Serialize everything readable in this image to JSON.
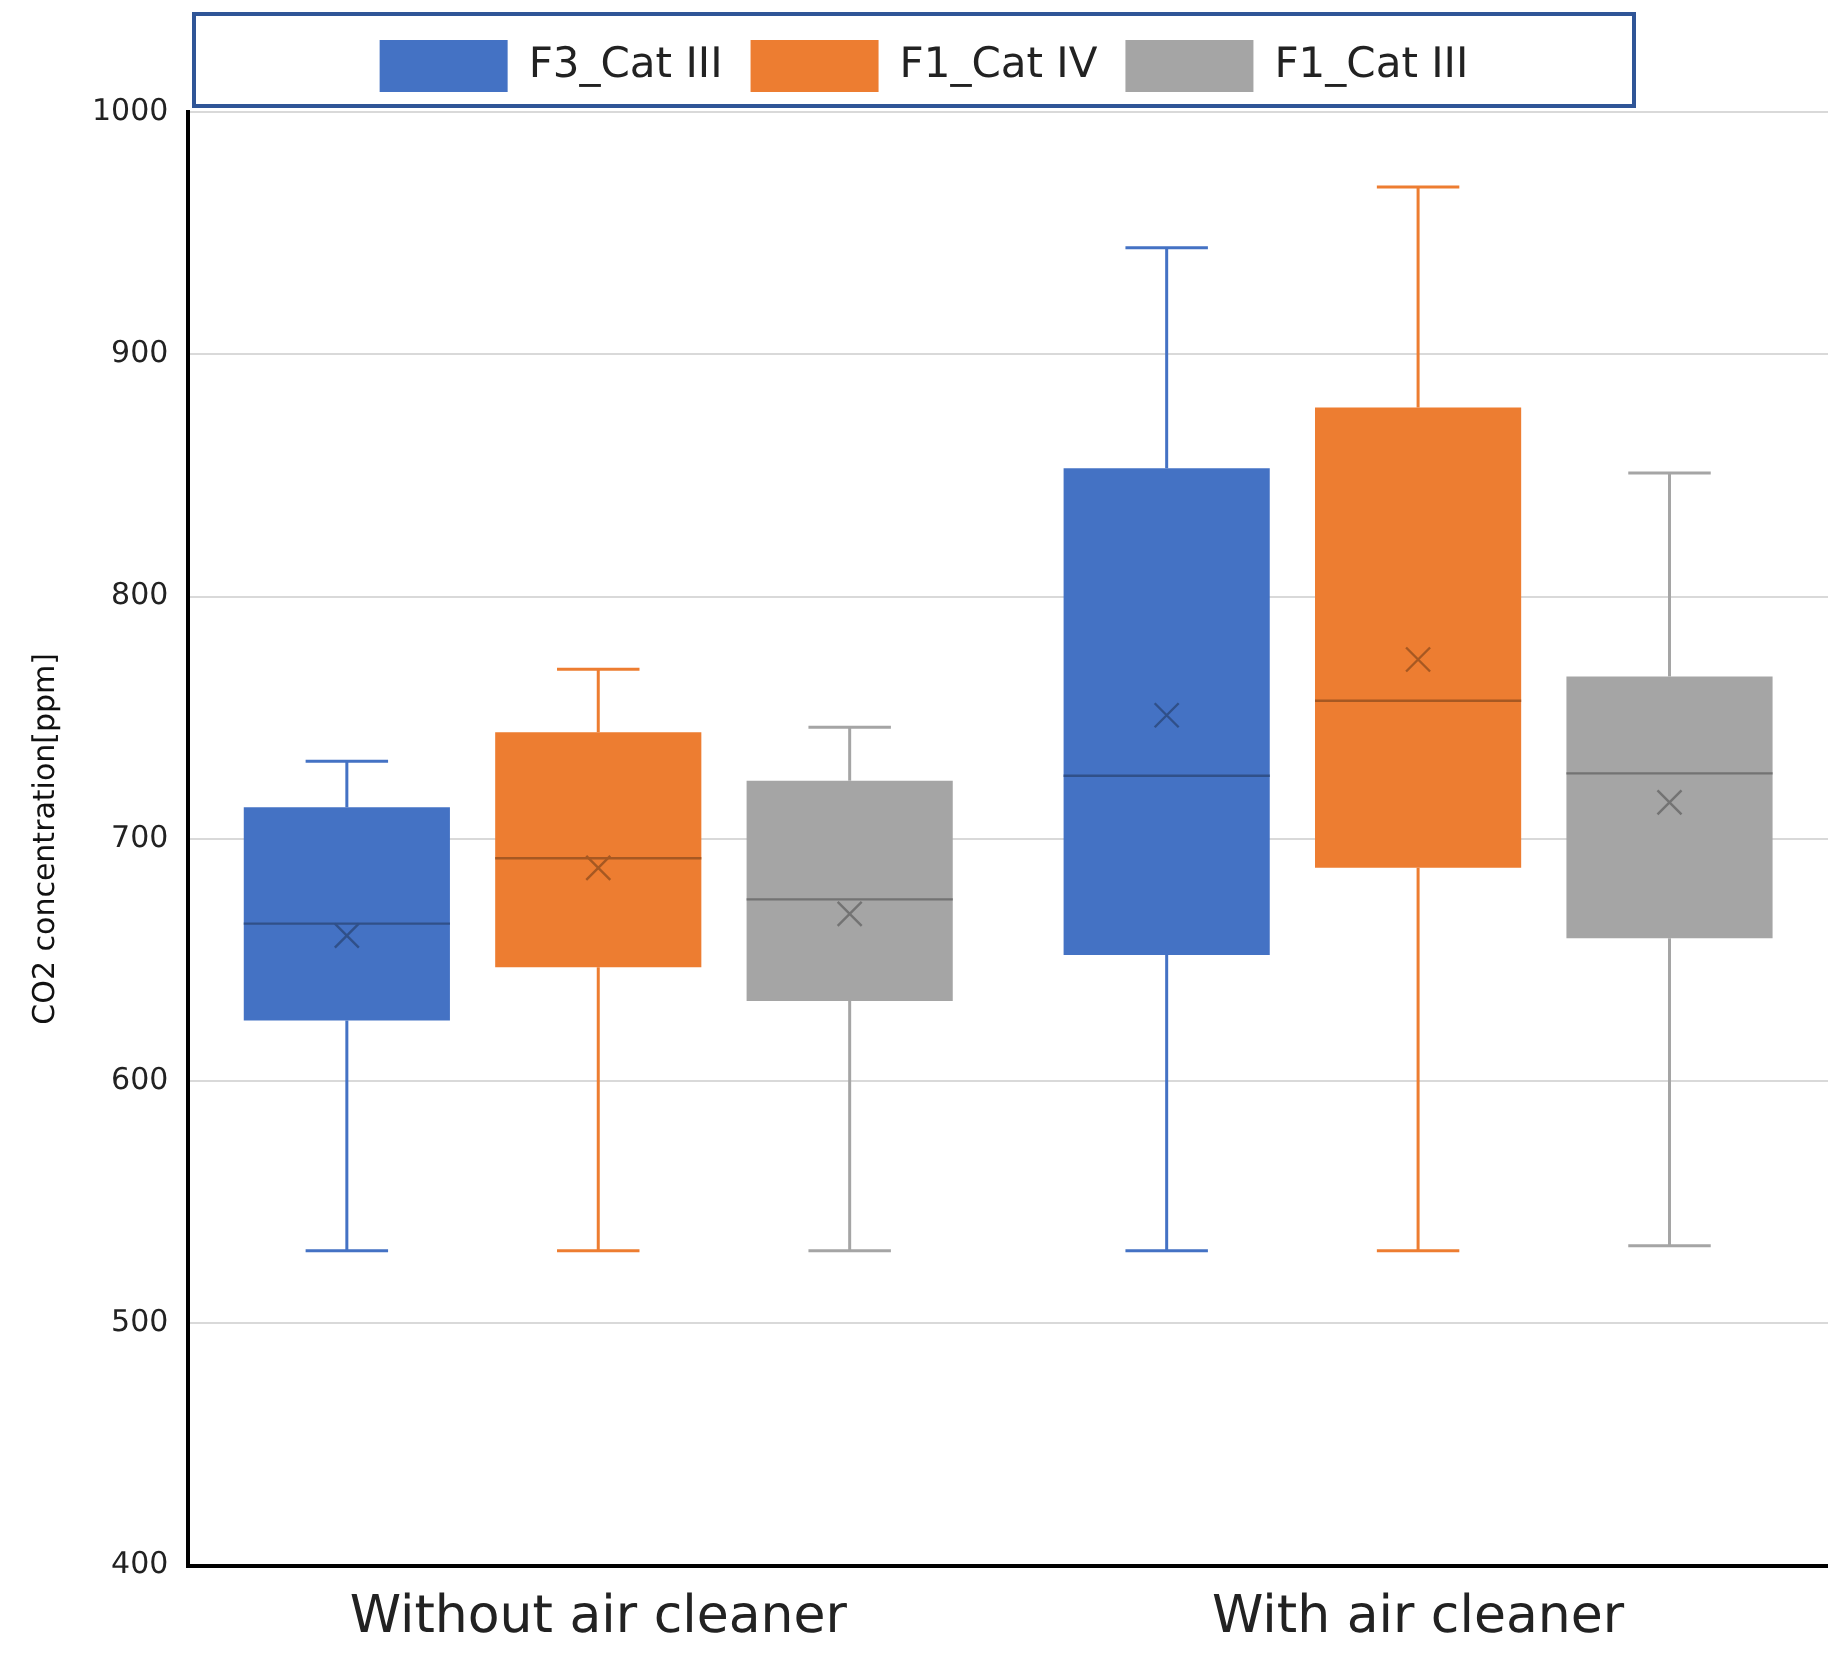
{
  "chart_data": {
    "type": "box",
    "ylabel": "CO2 concentration[ppm]",
    "categories": [
      "Without air cleaner",
      "With air cleaner"
    ],
    "series": [
      {
        "name": "F3_Cat III",
        "color": "#4472c4",
        "boxes": [
          {
            "low": 530,
            "q1": 625,
            "median": 665,
            "q3": 713,
            "high": 732,
            "mean": 660
          },
          {
            "low": 530,
            "q1": 652,
            "median": 726,
            "q3": 853,
            "high": 944,
            "mean": 751
          }
        ]
      },
      {
        "name": "F1_Cat IV",
        "color": "#ed7d31",
        "boxes": [
          {
            "low": 530,
            "q1": 647,
            "median": 692,
            "q3": 744,
            "high": 770,
            "mean": 688
          },
          {
            "low": 530,
            "q1": 688,
            "median": 757,
            "q3": 878,
            "high": 969,
            "mean": 774
          }
        ]
      },
      {
        "name": "F1_Cat III",
        "color": "#a5a5a5",
        "boxes": [
          {
            "low": 530,
            "q1": 633,
            "median": 675,
            "q3": 724,
            "high": 746,
            "mean": 669
          },
          {
            "low": 532,
            "q1": 659,
            "median": 727,
            "q3": 767,
            "high": 851,
            "mean": 715
          }
        ]
      }
    ],
    "ylim": [
      400,
      1000
    ],
    "yticks": [
      400,
      500,
      600,
      700,
      800,
      900,
      1000
    ],
    "grid": "y",
    "legend": "top"
  }
}
